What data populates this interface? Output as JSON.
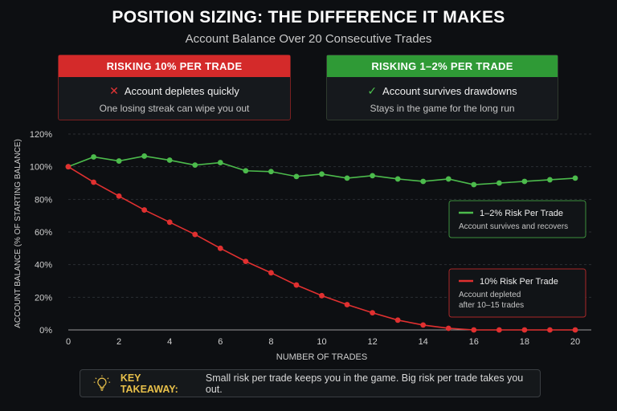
{
  "header": {
    "title": "POSITION SIZING: THE DIFFERENCE IT MAKES",
    "subtitle": "Account Balance Over 20 Consecutive Trades"
  },
  "cards": {
    "high_risk": {
      "heading": "RISKING 10% PER TRADE",
      "mark": "✕",
      "line1": "Account depletes quickly",
      "line2": "One losing streak can wipe you out",
      "color": "#d42a2a"
    },
    "low_risk": {
      "heading": "RISKING 1–2% PER TRADE",
      "mark": "✓",
      "line1": "Account survives drawdowns",
      "line2": "Stays in the game for the long run",
      "color": "#2f9a36"
    }
  },
  "chart_data": {
    "type": "line",
    "title": "",
    "xlabel": "NUMBER OF TRADES",
    "ylabel": "ACCOUNT BALANCE (% OF STARTING BALANCE)",
    "xlim": [
      0,
      20
    ],
    "ylim": [
      0,
      120
    ],
    "x_ticks": [
      0,
      2,
      4,
      6,
      8,
      10,
      12,
      14,
      16,
      18,
      20
    ],
    "y_ticks": [
      0,
      20,
      40,
      60,
      80,
      100,
      120
    ],
    "y_tick_labels": [
      "0%",
      "20%",
      "40%",
      "60%",
      "80%",
      "100%",
      "120%"
    ],
    "grid": true,
    "x": [
      0,
      1,
      2,
      3,
      4,
      5,
      6,
      7,
      8,
      9,
      10,
      11,
      12,
      13,
      14,
      15,
      16,
      17,
      18,
      19,
      20
    ],
    "series": [
      {
        "name": "1–2% Risk Per Trade",
        "color": "#4cbb4c",
        "values": [
          100,
          106,
          103.5,
          106.5,
          104,
          101,
          102.5,
          97.5,
          97,
          94,
          95.5,
          93,
          94.5,
          92.5,
          91,
          92.5,
          89,
          90,
          91,
          92,
          93
        ]
      },
      {
        "name": "10% Risk Per Trade",
        "color": "#e03030",
        "values": [
          100,
          90.5,
          82,
          73.5,
          66,
          58.5,
          50,
          42,
          35,
          27.5,
          21,
          15.5,
          10.5,
          6,
          3,
          1,
          0,
          0,
          0,
          0,
          0
        ]
      }
    ],
    "legends": [
      {
        "series_index": 0,
        "label": "1–2% Risk Per Trade",
        "note_lines": [
          "Account survives and recovers"
        ]
      },
      {
        "series_index": 1,
        "label": "10% Risk Per Trade",
        "note_lines": [
          "Account depleted",
          "after 10–15 trades"
        ]
      }
    ]
  },
  "takeaway": {
    "icon": "lightbulb-icon",
    "label": "KEY TAKEAWAY:",
    "text": "Small risk per trade keeps you in the game. Big risk per trade takes you out."
  }
}
